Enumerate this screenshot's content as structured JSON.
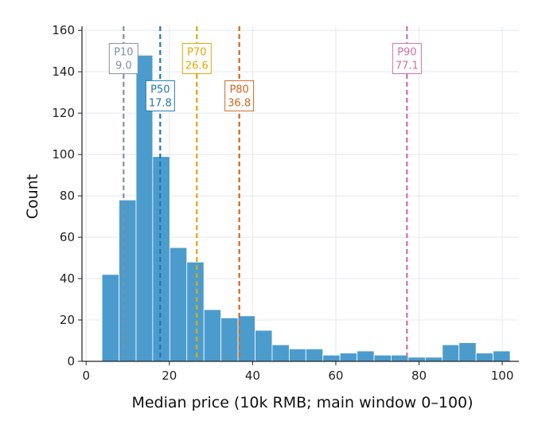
{
  "chart_data": {
    "type": "bar",
    "xlabel": "Median price (10k RMB; main window 0–100)",
    "ylabel": "Count",
    "xlim": [
      -1,
      104
    ],
    "ylim": [
      0,
      162
    ],
    "xticks": [
      0,
      20,
      40,
      60,
      80,
      100
    ],
    "yticks": [
      0,
      20,
      40,
      60,
      80,
      100,
      120,
      140,
      160
    ],
    "grid": true,
    "bin_color": "#4b9ccd",
    "bins": [
      {
        "start": 3.8,
        "end": 7.9,
        "count": 42
      },
      {
        "start": 7.9,
        "end": 12.0,
        "count": 78
      },
      {
        "start": 12.0,
        "end": 16.0,
        "count": 148
      },
      {
        "start": 16.0,
        "end": 20.1,
        "count": 99
      },
      {
        "start": 20.1,
        "end": 24.2,
        "count": 55
      },
      {
        "start": 24.2,
        "end": 28.3,
        "count": 48
      },
      {
        "start": 28.3,
        "end": 32.4,
        "count": 25
      },
      {
        "start": 32.4,
        "end": 36.5,
        "count": 21
      },
      {
        "start": 36.5,
        "end": 40.6,
        "count": 22
      },
      {
        "start": 40.6,
        "end": 44.7,
        "count": 15
      },
      {
        "start": 44.7,
        "end": 48.8,
        "count": 8
      },
      {
        "start": 48.8,
        "end": 52.8,
        "count": 6
      },
      {
        "start": 52.8,
        "end": 56.9,
        "count": 6
      },
      {
        "start": 56.9,
        "end": 61.0,
        "count": 3
      },
      {
        "start": 61.0,
        "end": 65.1,
        "count": 4
      },
      {
        "start": 65.1,
        "end": 69.2,
        "count": 5
      },
      {
        "start": 69.2,
        "end": 73.3,
        "count": 3
      },
      {
        "start": 73.3,
        "end": 77.4,
        "count": 3
      },
      {
        "start": 77.4,
        "end": 81.5,
        "count": 2
      },
      {
        "start": 81.5,
        "end": 85.6,
        "count": 2
      },
      {
        "start": 85.6,
        "end": 89.6,
        "count": 8
      },
      {
        "start": 89.6,
        "end": 93.7,
        "count": 9
      },
      {
        "start": 93.7,
        "end": 97.8,
        "count": 4
      },
      {
        "start": 97.8,
        "end": 101.9,
        "count": 5
      }
    ],
    "percentiles": [
      {
        "label": "P10",
        "value": 9.0,
        "value_text": "9.0",
        "color": "#7f8fa6",
        "label_y": 146
      },
      {
        "label": "P50",
        "value": 17.8,
        "value_text": "17.8",
        "color": "#1f77b4",
        "label_y": 128
      },
      {
        "label": "P70",
        "value": 26.6,
        "value_text": "26.6",
        "color": "#e0a800",
        "label_y": 146
      },
      {
        "label": "P80",
        "value": 36.8,
        "value_text": "36.8",
        "color": "#d0661b",
        "label_y": 128
      },
      {
        "label": "P90",
        "value": 77.1,
        "value_text": "77.1",
        "color": "#d070a8",
        "label_y": 146
      }
    ]
  }
}
